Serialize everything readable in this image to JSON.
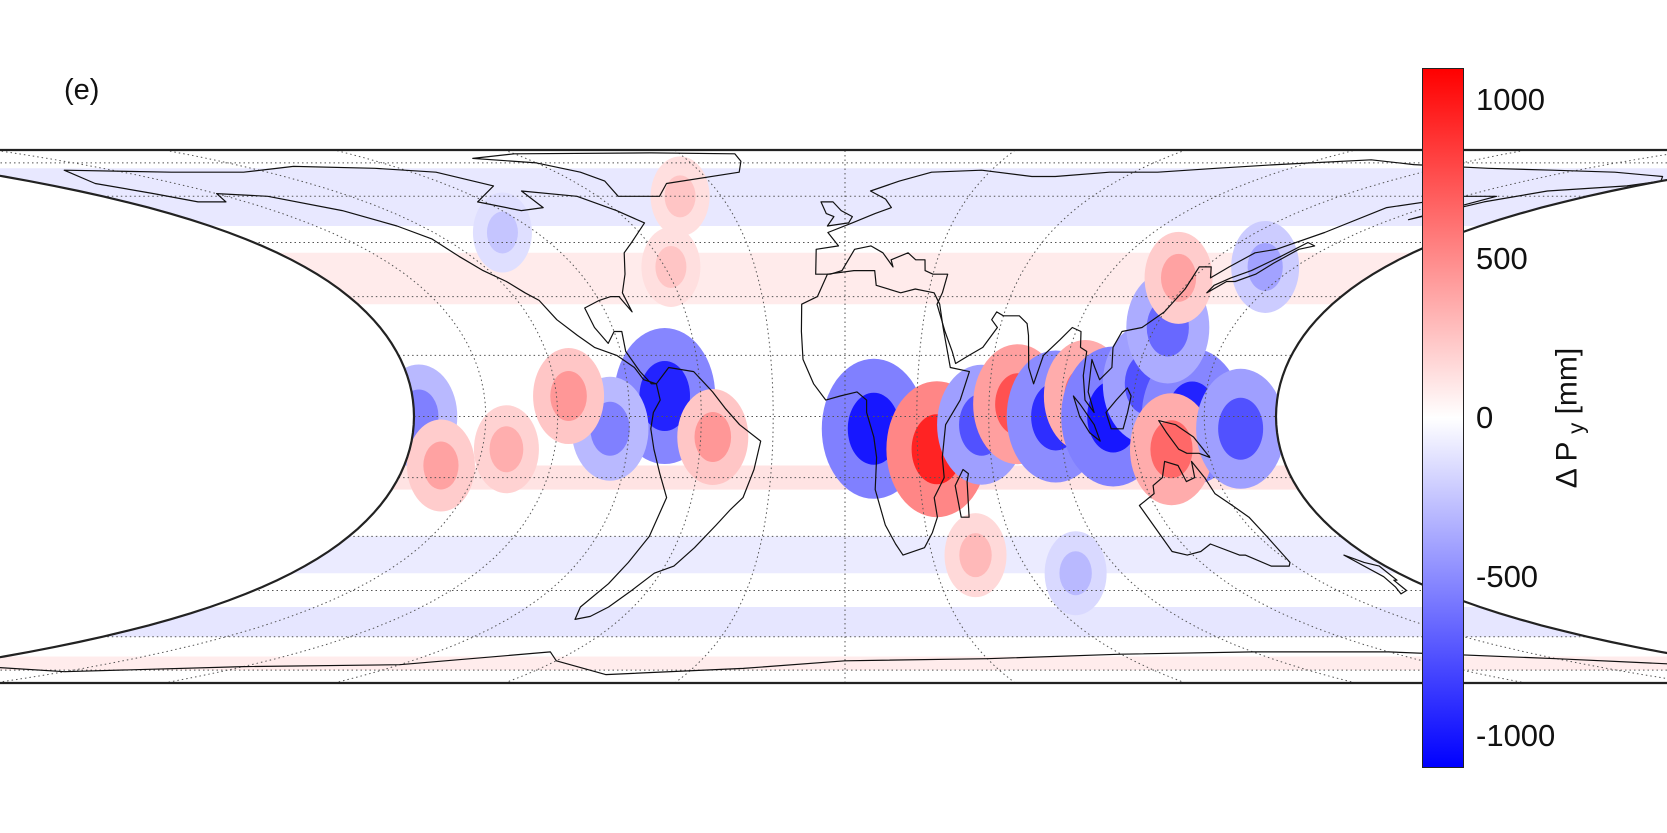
{
  "panel_label": "(e)",
  "colorbar": {
    "title_prefix": "Δ P",
    "title_subscript": "y",
    "title_suffix": " [mm]",
    "range": [
      -1100,
      1100
    ],
    "ticks": [
      "1000",
      "500",
      "0",
      "-500",
      "-1000"
    ],
    "tick_values": [
      1000,
      500,
      0,
      -500,
      -1000
    ],
    "colors": {
      "max": "#ff0000",
      "zero": "#ffffff",
      "min": "#0000ff"
    }
  },
  "map": {
    "projection": "equal-earth",
    "graticule_interval_deg": 30,
    "anomalies": [
      {
        "lon": -75,
        "lat": 5,
        "value": -950
      },
      {
        "lon": -55,
        "lat": -5,
        "value": 450
      },
      {
        "lon": -98,
        "lat": -3,
        "value": -550
      },
      {
        "lon": -115,
        "lat": 5,
        "value": 450
      },
      {
        "lon": -140,
        "lat": -8,
        "value": 350
      },
      {
        "lon": -178,
        "lat": 0,
        "value": -550
      },
      {
        "lon": -165,
        "lat": -12,
        "value": 400
      },
      {
        "lon": 12,
        "lat": -3,
        "value": -1000
      },
      {
        "lon": 38,
        "lat": -8,
        "value": 950
      },
      {
        "lon": 57,
        "lat": -2,
        "value": -750
      },
      {
        "lon": 72,
        "lat": 3,
        "value": 750
      },
      {
        "lon": 88,
        "lat": 0,
        "value": -900
      },
      {
        "lon": 100,
        "lat": 5,
        "value": 650
      },
      {
        "lon": 112,
        "lat": 0,
        "value": -1000
      },
      {
        "lon": 125,
        "lat": 8,
        "value": -750
      },
      {
        "lon": 145,
        "lat": 0,
        "value": -950
      },
      {
        "lon": 135,
        "lat": -8,
        "value": 650
      },
      {
        "lon": 165,
        "lat": -3,
        "value": -750
      },
      {
        "lon": 125,
        "lat": 22,
        "value": -650
      },
      {
        "lon": 115,
        "lat": 35,
        "value": 400
      },
      {
        "lon": 140,
        "lat": 38,
        "value": -400
      },
      {
        "lon": -58,
        "lat": 38,
        "value": 250
      },
      {
        "lon": -100,
        "lat": 48,
        "value": -250
      },
      {
        "lon": -40,
        "lat": 60,
        "value": 250
      },
      {
        "lon": 45,
        "lat": -35,
        "value": 300
      },
      {
        "lon": 75,
        "lat": -40,
        "value": -300
      }
    ]
  }
}
